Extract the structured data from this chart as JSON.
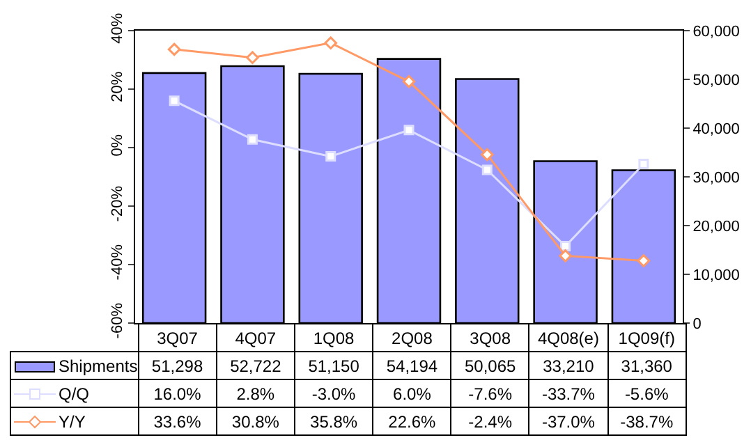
{
  "chart_data": {
    "type": "bar",
    "categories": [
      "3Q07",
      "4Q07",
      "1Q08",
      "2Q08",
      "3Q08",
      "4Q08(e)",
      "1Q09(f)"
    ],
    "series": [
      {
        "name": "Shipments",
        "axis": "y2",
        "color": "#9999ff",
        "values": [
          51298,
          52722,
          51150,
          54194,
          50065,
          33210,
          31360
        ],
        "value_labels": [
          "51,298",
          "52,722",
          "51,150",
          "54,194",
          "50,065",
          "33,210",
          "31,360"
        ]
      },
      {
        "name": "Q/Q",
        "type": "line",
        "axis": "y",
        "color": "#ddddff",
        "marker": "square",
        "values": [
          16.0,
          2.8,
          -3.0,
          6.0,
          -7.6,
          -33.7,
          -5.6
        ],
        "value_labels": [
          "16.0%",
          "2.8%",
          "-3.0%",
          "6.0%",
          "-7.6%",
          "-33.7%",
          "-5.6%"
        ]
      },
      {
        "name": "Y/Y",
        "type": "line",
        "axis": "y",
        "color": "#ff9966",
        "marker": "diamond",
        "values": [
          33.6,
          30.8,
          35.8,
          22.6,
          -2.4,
          -37.0,
          -38.7
        ],
        "value_labels": [
          "33.6%",
          "30.8%",
          "35.8%",
          "22.6%",
          "-2.4%",
          "-37.0%",
          "-38.7%"
        ]
      }
    ],
    "ylim": [
      -60,
      40
    ],
    "yticks": [
      {
        "value": -60,
        "label": "-60%"
      },
      {
        "value": -40,
        "label": "-40%"
      },
      {
        "value": -20,
        "label": "-20%"
      },
      {
        "value": 0,
        "label": "0%"
      },
      {
        "value": 20,
        "label": "20%"
      },
      {
        "value": 40,
        "label": "40%"
      }
    ],
    "y2lim": [
      0,
      60000
    ],
    "y2ticks": [
      0,
      {
        "value": 10000,
        "label": "10,000"
      },
      {
        "value": 20000,
        "label": "20,000"
      },
      {
        "value": 30000,
        "label": "30,000"
      },
      {
        "value": 40000,
        "label": "40,000"
      },
      {
        "value": 50000,
        "label": "50,000"
      },
      {
        "value": 60000,
        "label": "60,000"
      }
    ],
    "legend": "bottom",
    "grid": false
  }
}
